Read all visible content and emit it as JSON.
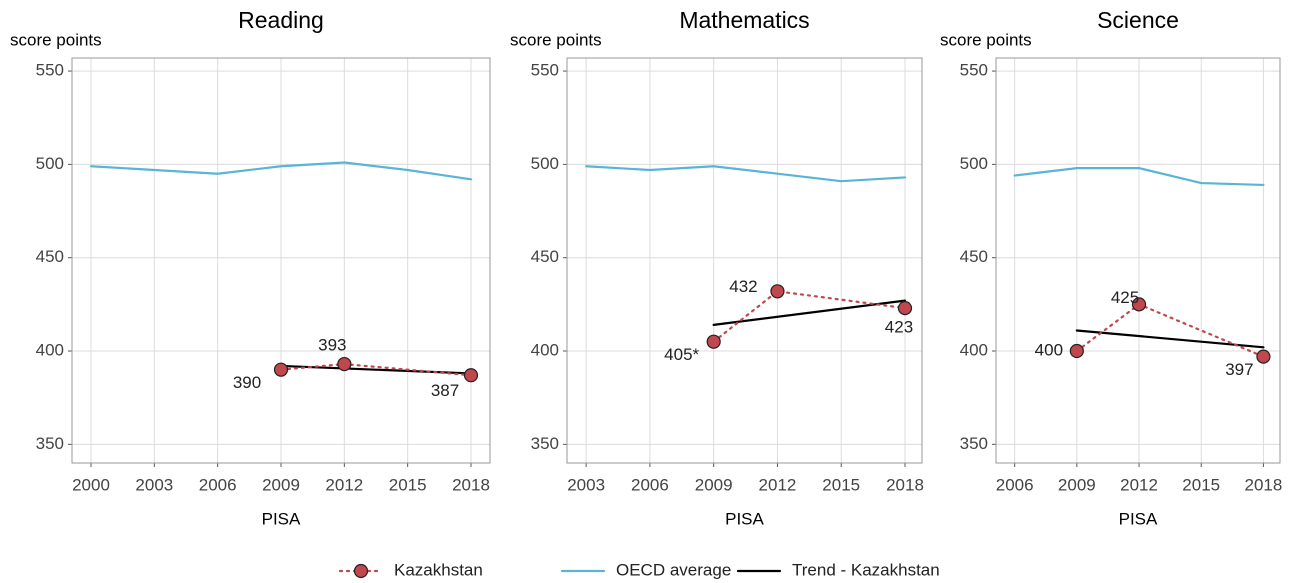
{
  "chart_data": [
    {
      "type": "line",
      "title": "Reading",
      "y_label": "score points",
      "x_label": "PISA",
      "xlim": [
        1999.1,
        2018.9
      ],
      "xticks": [
        2000,
        2003,
        2006,
        2009,
        2012,
        2015,
        2018
      ],
      "ylim": [
        340,
        557
      ],
      "yticks": [
        350,
        400,
        450,
        500,
        550
      ],
      "grid": true,
      "legend": "bottom",
      "series": [
        {
          "name": "Kazakhstan",
          "color": "#c0474e",
          "dashed": true,
          "markers": true,
          "x": [
            2009,
            2012,
            2018
          ],
          "values": [
            390,
            393,
            387
          ]
        },
        {
          "name": "OECD average",
          "color": "#5ab4d6",
          "x": [
            2000,
            2003,
            2006,
            2009,
            2012,
            2015,
            2018
          ],
          "values": [
            499,
            497,
            495,
            499,
            501,
            497,
            492
          ]
        },
        {
          "name": "Trend - Kazakhstan",
          "color": "#000000",
          "x": [
            2009,
            2018
          ],
          "values": [
            392,
            388
          ]
        }
      ]
    },
    {
      "type": "line",
      "title": "Mathematics",
      "y_label": "score points",
      "x_label": "PISA",
      "xlim": [
        2002.1,
        2018.8
      ],
      "xticks": [
        2003,
        2006,
        2009,
        2012,
        2015,
        2018
      ],
      "ylim": [
        340,
        557
      ],
      "yticks": [
        350,
        400,
        450,
        500,
        550
      ],
      "grid": true,
      "series": [
        {
          "name": "Kazakhstan",
          "color": "#c0474e",
          "dashed": true,
          "markers": true,
          "x": [
            2009,
            2012,
            2018
          ],
          "values": [
            405,
            432,
            423
          ],
          "value_labels": [
            "405*",
            "432",
            "423"
          ]
        },
        {
          "name": "OECD average",
          "color": "#5ab4d6",
          "x": [
            2003,
            2006,
            2009,
            2012,
            2015,
            2018
          ],
          "values": [
            499,
            497,
            499,
            495,
            491,
            493
          ]
        },
        {
          "name": "Trend - Kazakhstan",
          "color": "#000000",
          "x": [
            2009,
            2018
          ],
          "values": [
            414,
            427
          ]
        }
      ]
    },
    {
      "type": "line",
      "title": "Science",
      "y_label": "score points",
      "x_label": "PISA",
      "xlim": [
        2005.1,
        2018.8
      ],
      "xticks": [
        2006,
        2009,
        2012,
        2015,
        2018
      ],
      "ylim": [
        340,
        557
      ],
      "yticks": [
        350,
        400,
        450,
        500,
        550
      ],
      "grid": true,
      "series": [
        {
          "name": "Kazakhstan",
          "color": "#c0474e",
          "dashed": true,
          "markers": true,
          "x": [
            2009,
            2012,
            2018
          ],
          "values": [
            400,
            425,
            397
          ]
        },
        {
          "name": "OECD average",
          "color": "#5ab4d6",
          "x": [
            2006,
            2009,
            2012,
            2015,
            2018
          ],
          "values": [
            494,
            498,
            498,
            490,
            489
          ]
        },
        {
          "name": "Trend - Kazakhstan",
          "color": "#000000",
          "x": [
            2009,
            2018
          ],
          "values": [
            411,
            402
          ]
        }
      ]
    }
  ]
}
